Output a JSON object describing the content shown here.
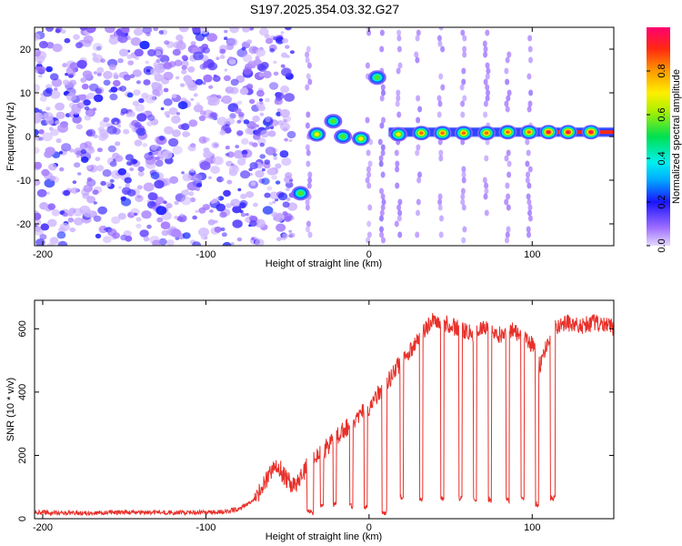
{
  "title": "S197.2025.354.03.32.G27",
  "colors": {
    "line": "#e8302a",
    "axis": "#000000",
    "purple": "#8a3cf0"
  },
  "chart_data": [
    {
      "type": "heatmap",
      "id": "spectrogram",
      "xlabel": "Height of straight line (km)",
      "ylabel": "Frequency (Hz)",
      "xlim": [
        -205,
        150
      ],
      "ylim": [
        -25,
        25
      ],
      "xticks": [
        -200,
        -100,
        0,
        100
      ],
      "xtick_labels": [
        "-200",
        "-100",
        "0",
        "100"
      ],
      "yticks": [
        -20,
        -10,
        0,
        10,
        20
      ],
      "ytick_labels": [
        "-20",
        "-10",
        "0",
        "10",
        "20"
      ],
      "colorbar": {
        "label": "Normalized spectral amplitude",
        "range": [
          0,
          1
        ],
        "ticks": [
          0.0,
          0.2,
          0.4,
          0.6,
          0.8
        ],
        "tick_labels": [
          "0.0",
          "0.2",
          "0.4",
          "0.6",
          "0.8"
        ]
      },
      "noise_region_km": [
        -205,
        -47
      ],
      "blobs": [
        {
          "x": -42,
          "y": -13,
          "amp": 0.55
        },
        {
          "x": -32,
          "y": 0.5,
          "amp": 0.75
        },
        {
          "x": -22,
          "y": 3.5,
          "amp": 0.6
        },
        {
          "x": -16,
          "y": 0,
          "amp": 0.55
        },
        {
          "x": -5,
          "y": -0.5,
          "amp": 0.7
        },
        {
          "x": 5,
          "y": 13.5,
          "amp": 0.6
        },
        {
          "x": 18,
          "y": 0.5,
          "amp": 0.75
        },
        {
          "x": 32,
          "y": 0.8,
          "amp": 0.8
        },
        {
          "x": 45,
          "y": 0.8,
          "amp": 0.85
        },
        {
          "x": 58,
          "y": 0.8,
          "amp": 0.85
        },
        {
          "x": 72,
          "y": 0.8,
          "amp": 0.85
        },
        {
          "x": 85,
          "y": 1.0,
          "amp": 0.85
        },
        {
          "x": 98,
          "y": 1.0,
          "amp": 0.85
        },
        {
          "x": 110,
          "y": 1.0,
          "amp": 0.9
        },
        {
          "x": 122,
          "y": 1.0,
          "amp": 0.9
        },
        {
          "x": 136,
          "y": 1.0,
          "amp": 0.95
        }
      ]
    },
    {
      "type": "line",
      "id": "snr",
      "xlabel": "Height of straight line (km)",
      "ylabel": "SNR (10 * v/v)",
      "xlim": [
        -205,
        150
      ],
      "ylim": [
        0,
        690
      ],
      "xticks": [
        -200,
        -100,
        0,
        100
      ],
      "xtick_labels": [
        "-200",
        "-100",
        "0",
        "100"
      ],
      "yticks": [
        0,
        200,
        400,
        600
      ],
      "ytick_labels": [
        "0",
        "200",
        "400",
        "600"
      ],
      "x": [
        -205,
        -180,
        -150,
        -120,
        -100,
        -90,
        -80,
        -70,
        -60,
        -55,
        -50,
        -45,
        -40,
        -36,
        -30,
        -25,
        -20,
        -15,
        -10,
        -5,
        0,
        5,
        10,
        15,
        20,
        25,
        30,
        35,
        40,
        45,
        50,
        55,
        60,
        65,
        70,
        75,
        80,
        85,
        90,
        95,
        100,
        105,
        110,
        115,
        120,
        130,
        140,
        150
      ],
      "values": [
        20,
        18,
        20,
        19,
        20,
        22,
        30,
        60,
        150,
        160,
        120,
        100,
        150,
        180,
        200,
        230,
        260,
        280,
        300,
        330,
        350,
        390,
        420,
        460,
        500,
        530,
        560,
        600,
        630,
        620,
        610,
        600,
        590,
        580,
        600,
        590,
        580,
        600,
        590,
        570,
        550,
        480,
        570,
        610,
        620,
        610,
        620,
        600
      ],
      "dips": [
        {
          "x0": -38,
          "x1": -34,
          "v": 20
        },
        {
          "x0": -30,
          "x1": -28,
          "v": 40
        },
        {
          "x0": -22,
          "x1": -20,
          "v": 45
        },
        {
          "x0": -12,
          "x1": -10,
          "v": 40
        },
        {
          "x0": -3,
          "x1": -1,
          "v": 40
        },
        {
          "x0": 8,
          "x1": 11,
          "v": 20
        },
        {
          "x0": 19,
          "x1": 21,
          "v": 70
        },
        {
          "x0": 31,
          "x1": 33,
          "v": 60
        },
        {
          "x0": 44,
          "x1": 46,
          "v": 60
        },
        {
          "x0": 55,
          "x1": 57,
          "v": 65
        },
        {
          "x0": 64,
          "x1": 66,
          "v": 60
        },
        {
          "x0": 73,
          "x1": 75,
          "v": 60
        },
        {
          "x0": 84,
          "x1": 86,
          "v": 60
        },
        {
          "x0": 93,
          "x1": 95,
          "v": 60
        },
        {
          "x0": 102,
          "x1": 104,
          "v": 45
        },
        {
          "x0": 111,
          "x1": 114,
          "v": 65
        }
      ]
    }
  ]
}
